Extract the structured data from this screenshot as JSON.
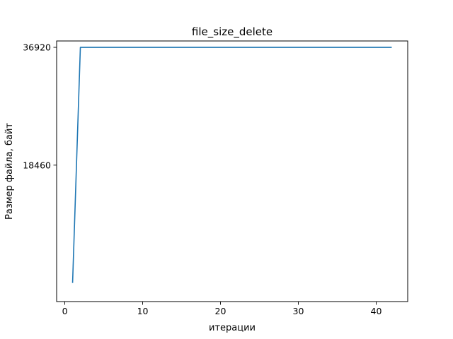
{
  "chart_data": {
    "type": "line",
    "title": "file_size_delete",
    "xlabel": "итерации",
    "ylabel": "Размер файла, байт",
    "xlim": [
      -1.05,
      44.05
    ],
    "ylim": [
      -2920,
      37920
    ],
    "xticks": [
      0,
      10,
      20,
      30,
      40
    ],
    "xtick_labels": [
      "0",
      "10",
      "20",
      "30",
      "40"
    ],
    "yticks": [
      18460,
      36920
    ],
    "ytick_labels": [
      "18460",
      "36920"
    ],
    "grid": false,
    "legend": "none",
    "series": [
      {
        "color": "#1f77b4",
        "x": [
          1,
          2,
          3,
          4,
          5,
          6,
          7,
          8,
          9,
          10,
          11,
          12,
          13,
          14,
          15,
          16,
          17,
          18,
          19,
          20,
          21,
          22,
          23,
          24,
          25,
          26,
          27,
          28,
          29,
          30,
          31,
          32,
          33,
          34,
          35,
          36,
          37,
          38,
          39,
          40,
          41,
          42
        ],
        "y": [
          0,
          36920,
          36920,
          36920,
          36920,
          36920,
          36920,
          36920,
          36920,
          36920,
          36920,
          36920,
          36920,
          36920,
          36920,
          36920,
          36920,
          36920,
          36920,
          36920,
          36920,
          36920,
          36920,
          36920,
          36920,
          36920,
          36920,
          36920,
          36920,
          36920,
          36920,
          36920,
          36920,
          36920,
          36920,
          36920,
          36920,
          36920,
          36920,
          36920,
          36920,
          36920
        ]
      }
    ]
  }
}
